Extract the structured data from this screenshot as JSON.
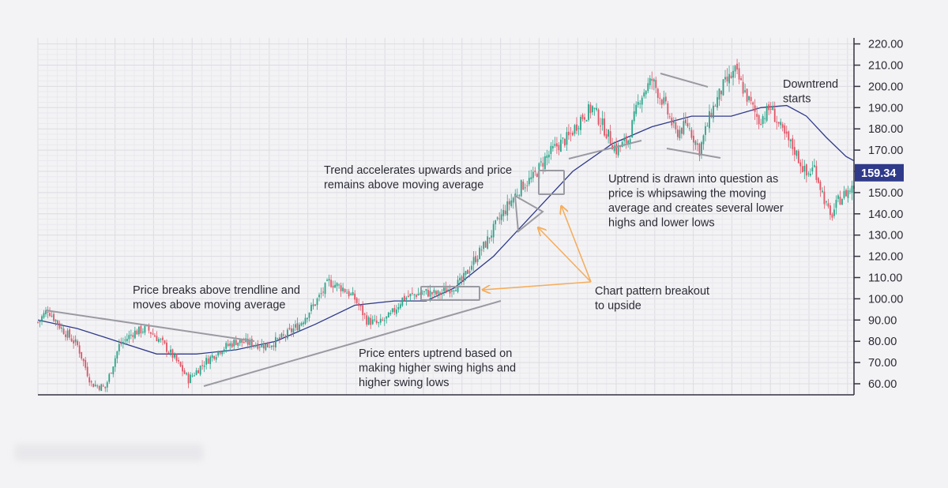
{
  "chart_data": {
    "type": "candlestick",
    "y_axis": {
      "position": "right",
      "ylim": [
        55,
        225
      ],
      "ticks": [
        "60.00",
        "70.00",
        "80.00",
        "90.00",
        "100.00",
        "110.00",
        "120.00",
        "130.00",
        "140.00",
        "150.00",
        "160.00",
        "170.00",
        "180.00",
        "190.00",
        "200.00",
        "210.00",
        "220.00"
      ]
    },
    "current_price": {
      "value": 159.34,
      "label": "159.34"
    },
    "grid": true,
    "colors": {
      "bull": "#2aa58a",
      "bear": "#e05566",
      "ma": "#2f3a8a",
      "trendline": "#9a9aa2",
      "arrow": "#f5ad5c",
      "badge": "#2f3a8a",
      "grid_major": "#dcdce2",
      "grid_minor": "#e9e9ee",
      "axis": "#333340"
    },
    "series": [
      {
        "name": "Price (candles)",
        "kind": "candlestick",
        "keypoints": [
          [
            0,
            89
          ],
          [
            5,
            95
          ],
          [
            12,
            86
          ],
          [
            20,
            78
          ],
          [
            27,
            60
          ],
          [
            34,
            58
          ],
          [
            41,
            78
          ],
          [
            48,
            84
          ],
          [
            55,
            86
          ],
          [
            62,
            80
          ],
          [
            69,
            72
          ],
          [
            76,
            62
          ],
          [
            84,
            70
          ],
          [
            92,
            76
          ],
          [
            100,
            80
          ],
          [
            108,
            79
          ],
          [
            116,
            78
          ],
          [
            124,
            82
          ],
          [
            132,
            88
          ],
          [
            140,
            98
          ],
          [
            147,
            108
          ],
          [
            154,
            105
          ],
          [
            160,
            100
          ],
          [
            166,
            90
          ],
          [
            172,
            88
          ],
          [
            178,
            92
          ],
          [
            184,
            100
          ],
          [
            190,
            102
          ],
          [
            196,
            103
          ],
          [
            202,
            102
          ],
          [
            208,
            105
          ],
          [
            214,
            108
          ],
          [
            220,
            118
          ],
          [
            226,
            126
          ],
          [
            232,
            136
          ],
          [
            238,
            145
          ],
          [
            244,
            153
          ],
          [
            250,
            157
          ],
          [
            256,
            166
          ],
          [
            262,
            172
          ],
          [
            268,
            176
          ],
          [
            274,
            185
          ],
          [
            280,
            190
          ],
          [
            286,
            180
          ],
          [
            292,
            170
          ],
          [
            298,
            175
          ],
          [
            304,
            195
          ],
          [
            310,
            203
          ],
          [
            316,
            192
          ],
          [
            322,
            178
          ],
          [
            328,
            182
          ],
          [
            334,
            170
          ],
          [
            340,
            188
          ],
          [
            346,
            200
          ],
          [
            352,
            207
          ],
          [
            358,
            195
          ],
          [
            364,
            184
          ],
          [
            370,
            190
          ],
          [
            376,
            178
          ],
          [
            382,
            170
          ],
          [
            388,
            158
          ],
          [
            392,
            162
          ],
          [
            396,
            150
          ],
          [
            400,
            138
          ],
          [
            404,
            146
          ],
          [
            408,
            150
          ],
          [
            412,
            153
          ]
        ]
      },
      {
        "name": "Moving average",
        "kind": "line",
        "points": [
          [
            0,
            90
          ],
          [
            20,
            86
          ],
          [
            40,
            80
          ],
          [
            60,
            74
          ],
          [
            80,
            74
          ],
          [
            100,
            76
          ],
          [
            120,
            80
          ],
          [
            140,
            88
          ],
          [
            160,
            97
          ],
          [
            180,
            99
          ],
          [
            196,
            99
          ],
          [
            210,
            105
          ],
          [
            230,
            120
          ],
          [
            250,
            140
          ],
          [
            270,
            160
          ],
          [
            290,
            173
          ],
          [
            310,
            181
          ],
          [
            330,
            186
          ],
          [
            350,
            186
          ],
          [
            365,
            190
          ],
          [
            378,
            191
          ],
          [
            388,
            186
          ],
          [
            398,
            176
          ],
          [
            408,
            167
          ],
          [
            412,
            165
          ]
        ]
      }
    ],
    "annotations": [
      {
        "id": "a1",
        "lines": [
          "Price breaks above trendline and",
          "moves above moving average"
        ]
      },
      {
        "id": "a2",
        "lines": [
          "Price enters uptrend based on",
          "making higher swing highs and",
          "higher swing lows"
        ]
      },
      {
        "id": "a3",
        "lines": [
          "Trend accelerates upwards and price",
          "remains above moving average"
        ]
      },
      {
        "id": "a4",
        "lines": [
          "Chart pattern breakout",
          "to upside"
        ]
      },
      {
        "id": "a5",
        "lines": [
          "Uptrend is drawn into question as",
          "price is whipsawing the moving",
          "average and creates several lower",
          "highs and lower lows"
        ]
      },
      {
        "id": "a6",
        "lines": [
          "Downtrend",
          "starts"
        ]
      }
    ]
  }
}
